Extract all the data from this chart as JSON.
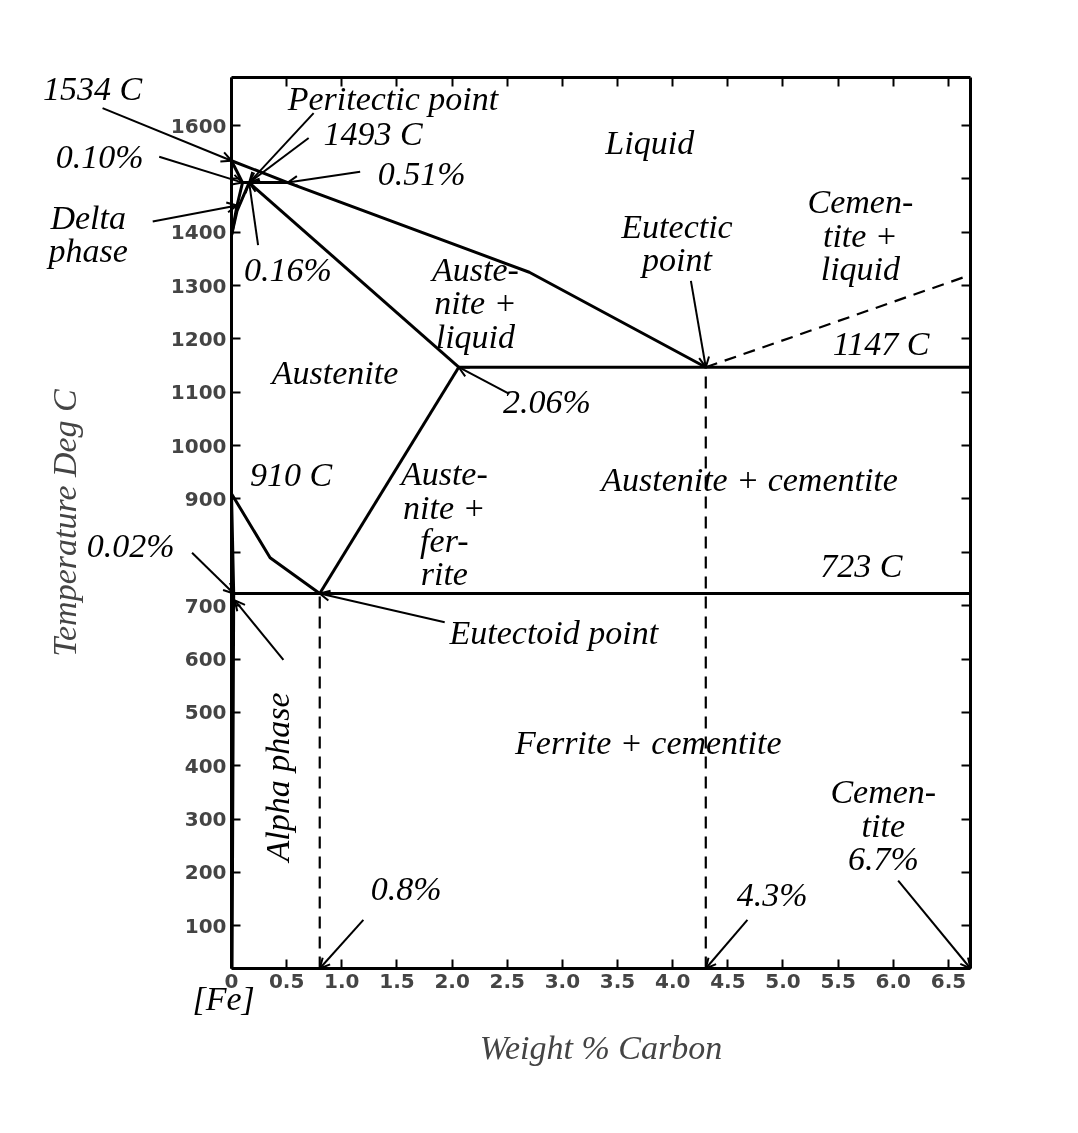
{
  "chart_data": {
    "type": "line",
    "xlabel": "Weight % Carbon",
    "ylabel": "Temperature Deg C",
    "xlim": [
      0,
      6.7
    ],
    "ylim": [
      20,
      1690
    ],
    "xticks": [
      0,
      {
        "value": 0.5,
        "label": "0.5"
      },
      {
        "value": 1,
        "label": "1.0"
      },
      {
        "value": 1.5,
        "label": "1.5"
      },
      {
        "value": 2,
        "label": "2.0"
      },
      {
        "value": 2.5,
        "label": "2.5"
      },
      {
        "value": 3,
        "label": "3.0"
      },
      {
        "value": 3.5,
        "label": "3.5"
      },
      {
        "value": 4,
        "label": "4.0"
      },
      {
        "value": 4.5,
        "label": "4.5"
      },
      {
        "value": 5,
        "label": "5.0"
      },
      {
        "value": 5.5,
        "label": "5.5"
      },
      {
        "value": 6,
        "label": "6.0"
      },
      {
        "value": 6.5,
        "label": "6.5"
      }
    ],
    "yticks": [
      100,
      200,
      300,
      400,
      500,
      600,
      700,
      {
        "value": 800,
        "label": null
      },
      900,
      1000,
      1100,
      1200,
      1300,
      1400,
      {
        "value": 1500,
        "label": null
      },
      1600
    ],
    "grid": false,
    "series": [
      {
        "color": "#000000",
        "line_style": "solid",
        "x": [
          0,
          0.51,
          2.7,
          4.3
        ],
        "values": [
          1534,
          1493,
          1325,
          1147
        ]
      },
      {
        "color": "#000000",
        "line_style": "dashed",
        "x": [
          4.3,
          6.7
        ],
        "values": [
          1147,
          1320
        ]
      },
      {
        "color": "#000000",
        "line_style": "solid",
        "x": [
          0.1,
          0.51
        ],
        "values": [
          1493,
          1493
        ]
      },
      {
        "color": "#000000",
        "line_style": "solid",
        "x": [
          0,
          0.1
        ],
        "values": [
          1534,
          1493
        ]
      },
      {
        "color": "#000000",
        "line_style": "solid",
        "x": [
          0.1,
          0.05,
          0
        ],
        "values": [
          1493,
          1450,
          1394
        ]
      },
      {
        "color": "#000000",
        "line_style": "solid",
        "x": [
          0.16,
          0.05,
          0
        ],
        "values": [
          1493,
          1440,
          1394
        ]
      },
      {
        "color": "#000000",
        "line_style": "solid",
        "x": [
          0.16,
          2.06
        ],
        "values": [
          1493,
          1147
        ]
      },
      {
        "color": "#000000",
        "line_style": "solid",
        "x": [
          2.06,
          6.7
        ],
        "values": [
          1147,
          1147
        ]
      },
      {
        "color": "#000000",
        "line_style": "solid",
        "x": [
          2.06,
          0.8
        ],
        "values": [
          1147,
          723
        ]
      },
      {
        "color": "#000000",
        "line_style": "solid",
        "x": [
          0,
          0.35,
          0.8
        ],
        "values": [
          910,
          790,
          723
        ]
      },
      {
        "color": "#000000",
        "line_style": "solid",
        "x": [
          0.02,
          6.7
        ],
        "values": [
          723,
          723
        ]
      },
      {
        "color": "#000000",
        "line_style": "solid",
        "x": [
          0,
          0.02,
          0.005
        ],
        "values": [
          910,
          723,
          20
        ]
      },
      {
        "color": "#000000",
        "line_style": "dashed",
        "x": [
          0.8,
          0.8
        ],
        "values": [
          20,
          723
        ]
      },
      {
        "color": "#000000",
        "line_style": "dashed",
        "x": [
          4.3,
          4.3
        ],
        "values": [
          20,
          1147
        ]
      }
    ],
    "annotations": [
      {
        "text": "1534 C",
        "x": 0,
        "y": 1534
      },
      {
        "text": "Peritectic point",
        "x": 0.16,
        "y": 1493
      },
      {
        "text": "1493 C",
        "x": 0.16,
        "y": 1493
      },
      {
        "text": "0.10%",
        "x": 0.1,
        "y": 1493
      },
      {
        "text": "0.51%",
        "x": 0.51,
        "y": 1493
      },
      {
        "text": "Delta\nphase",
        "x": 0.05,
        "y": 1450
      },
      {
        "text": "0.16%",
        "x": 0.16,
        "y": 1493
      },
      "Liquid",
      "Auste-\nnite +\nliquid",
      {
        "text": "Eutectic\npoint",
        "x": 4.3,
        "y": 1147
      },
      "Cemen-\ntite +\nliquid",
      {
        "text": "1147 C",
        "x": 5.89,
        "y": 1147
      },
      "Austenite",
      {
        "text": "2.06%",
        "x": 2.06,
        "y": 1147
      },
      {
        "text": "910 C",
        "x": 0,
        "y": 910
      },
      "Auste-\nnite +\nfer-\nrite",
      "Austenite + cementite",
      {
        "text": "0.02%",
        "x": 0.02,
        "y": 723
      },
      {
        "text": "723 C",
        "x": 5.71,
        "y": 723
      },
      {
        "text": "Eutectoid point",
        "x": 0.8,
        "y": 723
      },
      "Ferrite + cementite",
      {
        "text": "Alpha phase",
        "x": 0.03,
        "y": 710
      },
      {
        "text": "0.8%",
        "x": 0.8,
        "y": 20
      },
      {
        "text": "4.3%",
        "x": 4.3,
        "y": 20
      },
      "Cemen-\ntite\n6.7%",
      {
        "text": "[Fe]",
        "x": 0,
        "y": 20
      }
    ]
  }
}
